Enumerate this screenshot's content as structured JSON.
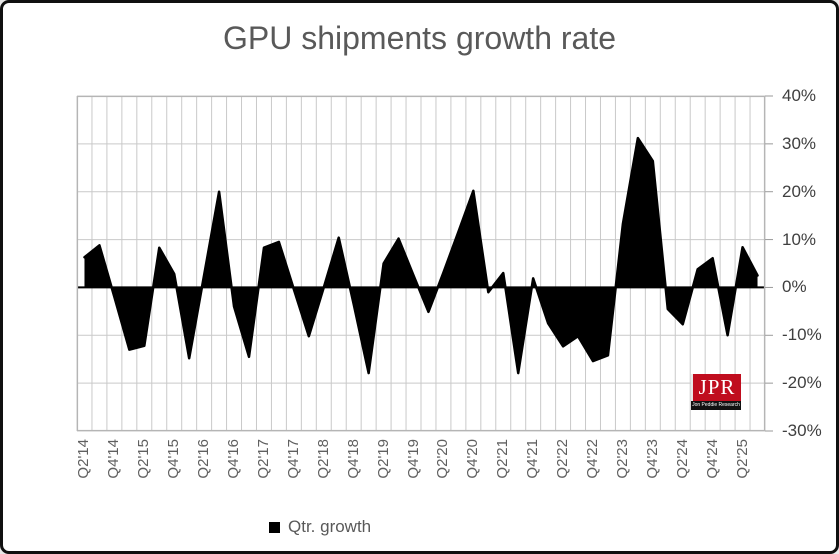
{
  "figure": {
    "title": "GPU shipments growth rate",
    "title_color": "#595959",
    "background": "#ffffff",
    "border_color": "#101010"
  },
  "legend": {
    "label": "Qtr. growth",
    "swatch_color": "#000000",
    "position": "bottom"
  },
  "logo": {
    "abbr": "JPR",
    "full_name": "Jon Peddie Research",
    "bg_color": "#c00d1e"
  },
  "chart_data": {
    "type": "area",
    "title": "GPU shipments growth rate",
    "series_name": "Qtr. growth",
    "series_color": "#000000",
    "grid": true,
    "legend_position": "bottom",
    "ylim": [
      -30,
      40
    ],
    "y_tick_step": 10,
    "y_tick_labels": [
      "40%",
      "30%",
      "20%",
      "10%",
      "0%",
      "-10%",
      "-20%",
      "-30%"
    ],
    "x_visible_tick_labels": [
      "Q2'14",
      "Q4'14",
      "Q2'15",
      "Q4'15",
      "Q2'16",
      "Q4'16",
      "Q2'17",
      "Q4'17",
      "Q2'18",
      "Q4'18",
      "Q2'19",
      "Q4'19",
      "Q2'20",
      "Q4'20",
      "Q2'21",
      "Q4'21",
      "Q2'22",
      "Q4'22",
      "Q2'23",
      "Q4'23",
      "Q2'24",
      "Q4'24",
      "Q2'25"
    ],
    "categories": [
      "Q2'14",
      "Q3'14",
      "Q4'14",
      "Q1'15",
      "Q2'15",
      "Q3'15",
      "Q4'15",
      "Q1'16",
      "Q2'16",
      "Q3'16",
      "Q4'16",
      "Q1'17",
      "Q2'17",
      "Q3'17",
      "Q4'17",
      "Q1'18",
      "Q2'18",
      "Q3'18",
      "Q4'18",
      "Q1'19",
      "Q2'19",
      "Q3'19",
      "Q4'19",
      "Q1'20",
      "Q2'20",
      "Q3'20",
      "Q4'20",
      "Q1'21",
      "Q2'21",
      "Q3'21",
      "Q4'21",
      "Q1'22",
      "Q2'22",
      "Q3'22",
      "Q4'22",
      "Q1'23",
      "Q2'23",
      "Q3'23",
      "Q4'23",
      "Q1'24",
      "Q2'24",
      "Q3'24",
      "Q4'24",
      "Q1'25",
      "Q2'25",
      "Q3'25"
    ],
    "values": [
      6.3,
      8.8,
      -2.0,
      -13.0,
      -12.2,
      8.3,
      2.8,
      -14.8,
      2.6,
      20.0,
      -4.0,
      -14.5,
      8.3,
      9.5,
      -0.4,
      -10.2,
      0.0,
      10.4,
      -3.5,
      -17.9,
      5.0,
      10.2,
      2.5,
      -5.1,
      3.1,
      11.6,
      20.2,
      -1.0,
      3.0,
      -17.9,
      1.9,
      -7.5,
      -12.3,
      -10.2,
      -15.4,
      -14.2,
      13.3,
      31.2,
      26.4,
      -4.5,
      -7.7,
      3.8,
      6.1,
      -10.0,
      8.4,
      2.5
    ]
  }
}
